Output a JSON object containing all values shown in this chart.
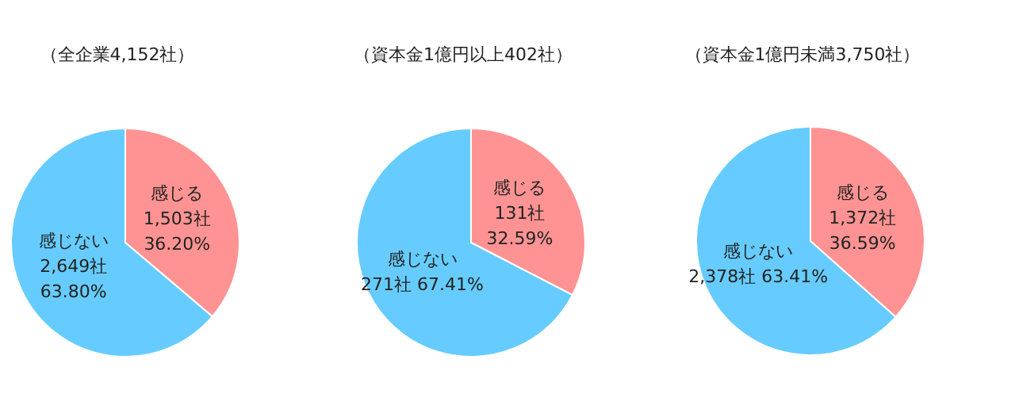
{
  "chart_data": [
    {
      "type": "pie",
      "title": "（全企業4,152社）",
      "categories": [
        "感じる",
        "感じない"
      ],
      "values": [
        36.2,
        63.8
      ],
      "colors": [
        "#ff9393",
        "#66ccff"
      ],
      "value_labels": [
        "1,503社\n36.20%",
        "2,649社\n63.80%"
      ]
    },
    {
      "type": "pie",
      "title": "（資本金1億円以上402社）",
      "categories": [
        "感じる",
        "感じない"
      ],
      "values": [
        32.59,
        67.41
      ],
      "colors": [
        "#ff9393",
        "#66ccff"
      ],
      "value_labels": [
        "131社\n32.59%",
        "271社 67.41%"
      ]
    },
    {
      "type": "pie",
      "title": "（資本金1億円未満3,750社）",
      "categories": [
        "感じる",
        "感じない"
      ],
      "values": [
        36.59,
        63.41
      ],
      "colors": [
        "#ff9393",
        "#66ccff"
      ],
      "value_labels": [
        "1,372社\n36.59%",
        "2,378社 63.41%"
      ]
    }
  ]
}
